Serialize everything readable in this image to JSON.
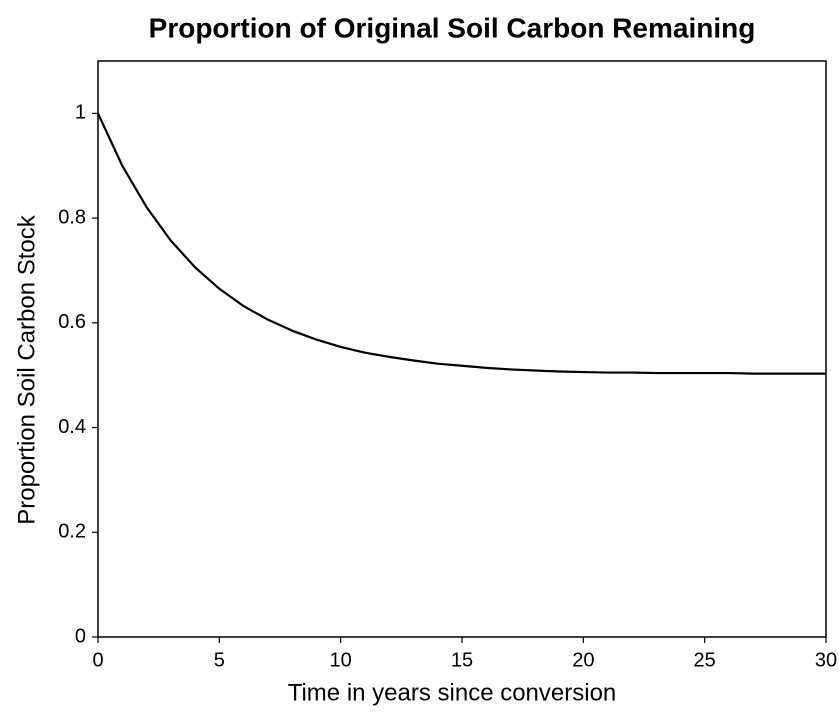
{
  "chart_data": {
    "type": "line",
    "title": "Proportion of Original Soil Carbon Remaining",
    "x_label": "Time in years since conversion",
    "y_label": "Proportion Soil Carbon Stock",
    "x": [
      0,
      1,
      2,
      3,
      4,
      5,
      6,
      7,
      8,
      9,
      10,
      11,
      12,
      13,
      14,
      15,
      16,
      17,
      18,
      19,
      20,
      21,
      22,
      23,
      24,
      25,
      26,
      27,
      28,
      29,
      30
    ],
    "values": [
      1,
      0.9,
      0.821,
      0.757,
      0.706,
      0.665,
      0.632,
      0.606,
      0.585,
      0.568,
      0.554,
      0.543,
      0.535,
      0.528,
      0.522,
      0.518,
      0.514,
      0.511,
      0.509,
      0.507,
      0.506,
      0.505,
      0.505,
      0.504,
      0.504,
      0.504,
      0.504,
      0.503,
      0.503,
      0.503,
      0.503
    ],
    "color": "#000000",
    "xlim": [
      0,
      30
    ],
    "xticks": [
      0,
      5,
      10,
      15,
      20,
      25,
      30
    ],
    "ylim": [
      0,
      1.1
    ],
    "yticks": [
      0,
      0.2,
      0.4,
      0.6,
      0.8,
      1
    ],
    "grid": false
  }
}
